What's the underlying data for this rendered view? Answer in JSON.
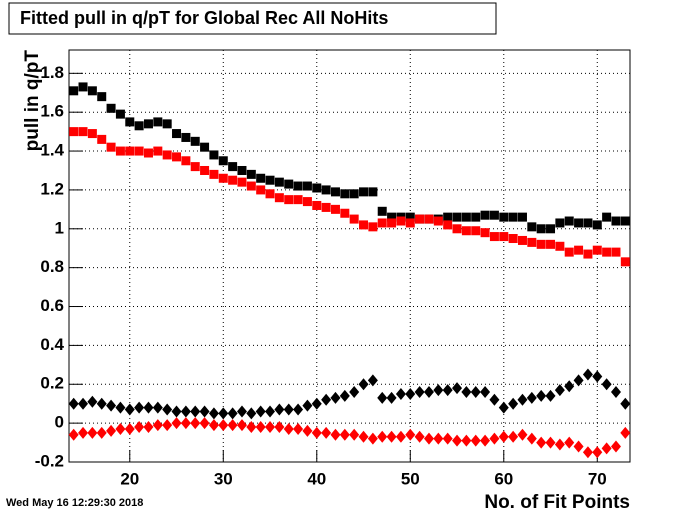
{
  "chart_data": {
    "type": "scatter",
    "title": "Fitted pull in q/pT for Global Rec All NoHits",
    "x_label": "No. of Fit Points",
    "y_label": "pull in q/pT",
    "timestamp": "Wed May 16 12:29:30 2018",
    "xlim": [
      13.5,
      73.5
    ],
    "ylim": [
      -0.2,
      1.92
    ],
    "xticks": [
      20,
      30,
      40,
      50,
      60,
      70
    ],
    "yticks": [
      -0.2,
      0,
      0.2,
      0.4,
      0.6,
      0.8,
      1,
      1.2,
      1.4,
      1.6,
      1.8
    ],
    "grid": true,
    "x": [
      14,
      15,
      16,
      17,
      18,
      19,
      20,
      21,
      22,
      23,
      24,
      25,
      26,
      27,
      28,
      29,
      30,
      31,
      32,
      33,
      34,
      35,
      36,
      37,
      38,
      39,
      40,
      41,
      42,
      43,
      44,
      45,
      46,
      47,
      48,
      49,
      50,
      51,
      52,
      53,
      54,
      55,
      56,
      57,
      58,
      59,
      60,
      61,
      62,
      63,
      64,
      65,
      66,
      67,
      68,
      69,
      70,
      71,
      72,
      73
    ],
    "series": [
      {
        "color": "#000000",
        "marker": "square",
        "values": [
          1.71,
          1.73,
          1.71,
          1.68,
          1.62,
          1.59,
          1.55,
          1.53,
          1.54,
          1.55,
          1.54,
          1.49,
          1.47,
          1.45,
          1.42,
          1.38,
          1.35,
          1.32,
          1.3,
          1.28,
          1.26,
          1.25,
          1.24,
          1.23,
          1.22,
          1.22,
          1.21,
          1.2,
          1.19,
          1.18,
          1.18,
          1.19,
          1.19,
          1.09,
          1.06,
          1.06,
          1.06,
          1.05,
          1.05,
          1.05,
          1.06,
          1.06,
          1.06,
          1.06,
          1.07,
          1.07,
          1.06,
          1.06,
          1.06,
          1.01,
          1.0,
          1.0,
          1.03,
          1.04,
          1.03,
          1.03,
          1.02,
          1.06,
          1.04,
          1.04
        ]
      },
      {
        "color": "#ff0000",
        "marker": "square",
        "values": [
          1.5,
          1.5,
          1.49,
          1.46,
          1.42,
          1.4,
          1.4,
          1.4,
          1.39,
          1.4,
          1.38,
          1.37,
          1.35,
          1.32,
          1.3,
          1.28,
          1.26,
          1.25,
          1.24,
          1.22,
          1.2,
          1.18,
          1.16,
          1.15,
          1.15,
          1.14,
          1.12,
          1.11,
          1.1,
          1.08,
          1.05,
          1.02,
          1.01,
          1.03,
          1.03,
          1.04,
          1.03,
          1.05,
          1.05,
          1.04,
          1.02,
          1.0,
          0.99,
          0.99,
          0.98,
          0.96,
          0.96,
          0.95,
          0.94,
          0.93,
          0.92,
          0.92,
          0.91,
          0.88,
          0.89,
          0.87,
          0.89,
          0.88,
          0.88,
          0.83
        ]
      },
      {
        "color": "#000000",
        "marker": "diamond",
        "values": [
          0.1,
          0.1,
          0.11,
          0.1,
          0.09,
          0.08,
          0.07,
          0.08,
          0.08,
          0.08,
          0.07,
          0.06,
          0.06,
          0.06,
          0.06,
          0.05,
          0.05,
          0.05,
          0.06,
          0.05,
          0.06,
          0.06,
          0.07,
          0.07,
          0.07,
          0.09,
          0.1,
          0.12,
          0.13,
          0.14,
          0.16,
          0.2,
          0.22,
          0.13,
          0.13,
          0.15,
          0.15,
          0.16,
          0.16,
          0.17,
          0.17,
          0.18,
          0.16,
          0.16,
          0.16,
          0.12,
          0.08,
          0.1,
          0.12,
          0.13,
          0.14,
          0.14,
          0.17,
          0.19,
          0.22,
          0.25,
          0.24,
          0.2,
          0.16,
          0.1
        ]
      },
      {
        "color": "#ff0000",
        "marker": "diamond",
        "values": [
          -0.06,
          -0.05,
          -0.05,
          -0.05,
          -0.04,
          -0.03,
          -0.03,
          -0.02,
          -0.02,
          -0.01,
          -0.01,
          0.0,
          0.0,
          0.0,
          0.0,
          -0.01,
          -0.01,
          -0.01,
          -0.01,
          -0.02,
          -0.02,
          -0.02,
          -0.02,
          -0.03,
          -0.03,
          -0.04,
          -0.05,
          -0.05,
          -0.06,
          -0.06,
          -0.06,
          -0.07,
          -0.08,
          -0.07,
          -0.07,
          -0.07,
          -0.06,
          -0.07,
          -0.08,
          -0.08,
          -0.08,
          -0.09,
          -0.09,
          -0.09,
          -0.09,
          -0.08,
          -0.07,
          -0.07,
          -0.06,
          -0.08,
          -0.1,
          -0.1,
          -0.11,
          -0.1,
          -0.12,
          -0.15,
          -0.15,
          -0.13,
          -0.12,
          -0.05
        ]
      }
    ]
  }
}
